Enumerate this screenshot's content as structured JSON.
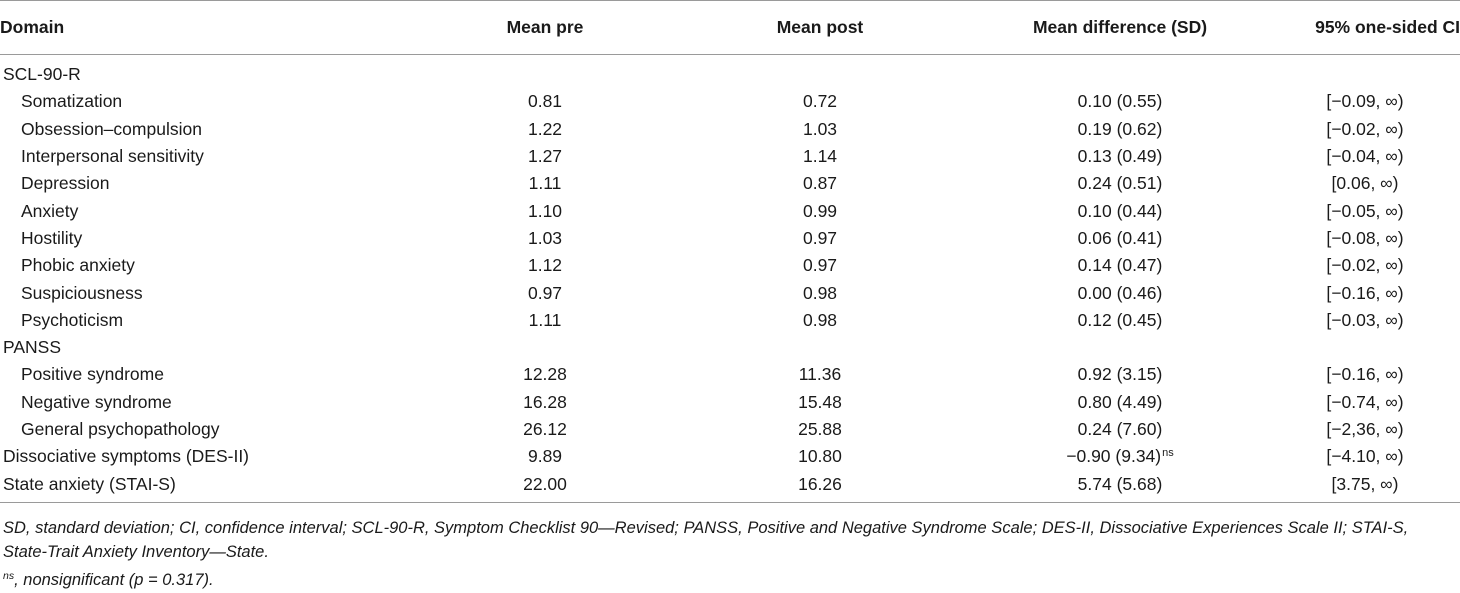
{
  "table": {
    "headers": {
      "domain": "Domain",
      "mean_pre": "Mean pre",
      "mean_post": "Mean post",
      "mean_diff": "Mean difference (SD)",
      "ci": "95% one-sided CI"
    },
    "groups": {
      "scl": "SCL-90-R",
      "panss": "PANSS"
    },
    "rows": [
      {
        "domain": "Somatization",
        "pre": "0.81",
        "post": "0.72",
        "diff": "0.10 (0.55)",
        "ci": "[−0.09, ∞)"
      },
      {
        "domain": "Obsession–compulsion",
        "pre": "1.22",
        "post": "1.03",
        "diff": "0.19 (0.62)",
        "ci": "[−0.02, ∞)"
      },
      {
        "domain": "Interpersonal sensitivity",
        "pre": "1.27",
        "post": "1.14",
        "diff": "0.13 (0.49)",
        "ci": "[−0.04, ∞)"
      },
      {
        "domain": "Depression",
        "pre": "1.11",
        "post": "0.87",
        "diff": "0.24 (0.51)",
        "ci": "[0.06, ∞)"
      },
      {
        "domain": "Anxiety",
        "pre": "1.10",
        "post": "0.99",
        "diff": "0.10 (0.44)",
        "ci": "[−0.05, ∞)"
      },
      {
        "domain": "Hostility",
        "pre": "1.03",
        "post": "0.97",
        "diff": "0.06 (0.41)",
        "ci": "[−0.08, ∞)"
      },
      {
        "domain": "Phobic anxiety",
        "pre": "1.12",
        "post": "0.97",
        "diff": "0.14 (0.47)",
        "ci": "[−0.02, ∞)"
      },
      {
        "domain": "Suspiciousness",
        "pre": "0.97",
        "post": "0.98",
        "diff": "0.00 (0.46)",
        "ci": "[−0.16, ∞)"
      },
      {
        "domain": "Psychoticism",
        "pre": "1.11",
        "post": "0.98",
        "diff": "0.12 (0.45)",
        "ci": "[−0.03, ∞)"
      },
      {
        "domain": "Positive syndrome",
        "pre": "12.28",
        "post": "11.36",
        "diff": "0.92 (3.15)",
        "ci": "[−0.16, ∞)"
      },
      {
        "domain": "Negative syndrome",
        "pre": "16.28",
        "post": "15.48",
        "diff": "0.80 (4.49)",
        "ci": "[−0.74, ∞)"
      },
      {
        "domain": "General psychopathology",
        "pre": "26.12",
        "post": "25.88",
        "diff": "0.24 (7.60)",
        "ci": "[−2,36, ∞)"
      },
      {
        "domain": "Dissociative symptoms (DES-II)",
        "pre": "9.89",
        "post": "10.80",
        "diff": "−0.90 (9.34)",
        "diff_sup": "ns",
        "ci": "[−4.10, ∞)"
      },
      {
        "domain": "State anxiety (STAI-S)",
        "pre": "22.00",
        "post": "16.26",
        "diff": "5.74 (5.68)",
        "ci": "[3.75, ∞)"
      }
    ]
  },
  "footnotes": {
    "abbreviations": "SD, standard deviation; CI, confidence interval; SCL-90-R, Symptom Checklist 90—Revised; PANSS, Positive and Negative Syndrome Scale; DES-II, Dissociative Experiences Scale II; STAI-S, State-Trait Anxiety Inventory—State.",
    "ns_marker": "ns",
    "ns_text": ", nonsignificant (p = 0.317)."
  }
}
